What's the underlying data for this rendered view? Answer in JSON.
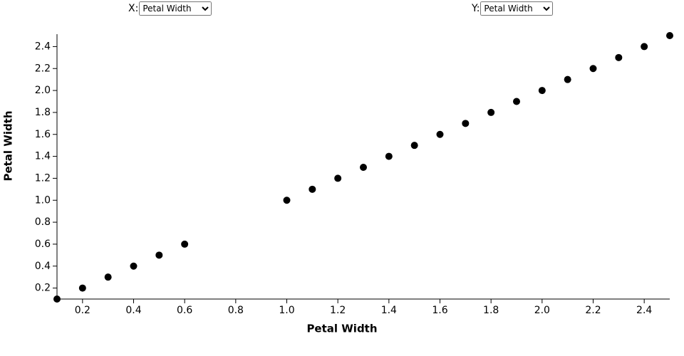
{
  "controls": {
    "x": {
      "label": "X:",
      "value": "Petal Width"
    },
    "y": {
      "label": "Y:",
      "value": "Petal Width"
    }
  },
  "chart_data": {
    "type": "scatter",
    "x_label": "Petal Width",
    "y_label": "Petal Width",
    "color": "#000000",
    "x": [
      0.1,
      0.2,
      0.3,
      0.4,
      0.5,
      0.6,
      1.0,
      1.1,
      1.2,
      1.3,
      1.4,
      1.5,
      1.6,
      1.7,
      1.8,
      1.9,
      2.0,
      2.1,
      2.2,
      2.3,
      2.4,
      2.5
    ],
    "values": [
      0.1,
      0.2,
      0.3,
      0.4,
      0.5,
      0.6,
      1.0,
      1.1,
      1.2,
      1.3,
      1.4,
      1.5,
      1.6,
      1.7,
      1.8,
      1.9,
      2.0,
      2.1,
      2.2,
      2.3,
      2.4,
      2.5
    ],
    "xlim": [
      0.1,
      2.5
    ],
    "ylim": [
      0.1,
      2.5
    ],
    "xticks": [
      0.2,
      0.4,
      0.6,
      0.8,
      {
        "value": 1,
        "label": "1.0"
      },
      1.2,
      1.4,
      1.6,
      1.8,
      {
        "value": 2,
        "label": "2.0"
      },
      2.2,
      2.4
    ],
    "yticks": [
      0.2,
      0.4,
      0.6,
      0.8,
      {
        "value": 1,
        "label": "1.0"
      },
      1.2,
      1.4,
      1.6,
      1.8,
      {
        "value": 2,
        "label": "2.0"
      },
      2.2,
      2.4
    ]
  }
}
